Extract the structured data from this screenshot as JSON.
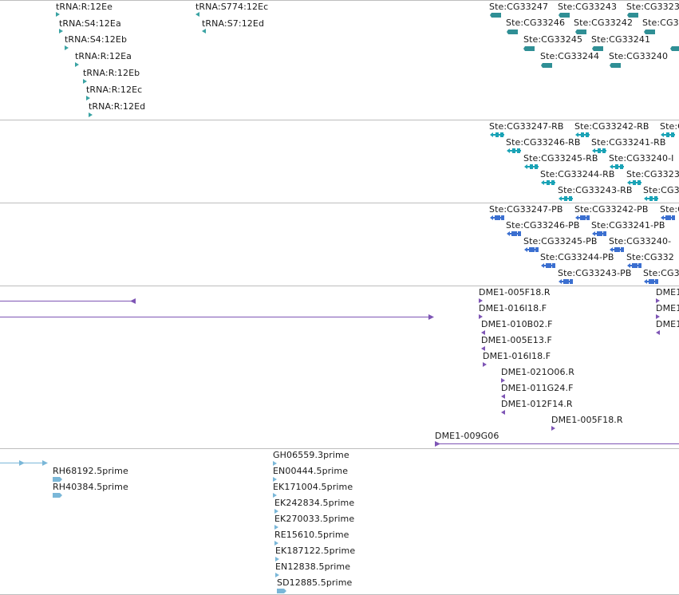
{
  "colors": {
    "trna": "#3aa3a3",
    "gene": "#2f8f95",
    "transcript": "#1aa3b6",
    "protein": "#3b6fd0",
    "clone": "#7e55b5",
    "est": "#7ab7d8",
    "separator": "#bdbdbd"
  },
  "icons": {
    "feature": "triangle-arrow-icon",
    "gene": "gene-block-icon",
    "transcript": "transcript-arrow-icon",
    "protein": "protein-arrow-icon"
  },
  "tracks": {
    "trna": {
      "items": [
        "tRNA:R:12Ee",
        "tRNA:S4:12Ea",
        "tRNA:S4:12Eb",
        "tRNA:R:12Ea",
        "tRNA:R:12Eb",
        "tRNA:R:12Ec",
        "tRNA:R:12Ed",
        "tRNA:S774:12Ec",
        "tRNA:S7:12Ed"
      ]
    },
    "genes": {
      "items": [
        "Ste:CG33247",
        "Ste:CG33243",
        "Ste:CG3323",
        "Ste:CG33246",
        "Ste:CG33242",
        "Ste:CG3",
        "Ste:CG33245",
        "Ste:CG33241",
        "Ste:CG33244",
        "Ste:CG33240"
      ]
    },
    "transcripts": {
      "items": [
        "Ste:CG33247-RB",
        "Ste:CG33242-RB",
        "Ste:C",
        "Ste:CG33246-RB",
        "Ste:CG33241-RB",
        "Ste:CG33245-RB",
        "Ste:CG33240-I",
        "Ste:CG33244-RB",
        "Ste:CG3323",
        "Ste:CG33243-RB",
        "Ste:CG3"
      ]
    },
    "proteins": {
      "items": [
        "Ste:CG33247-PB",
        "Ste:CG33242-PB",
        "Ste:C",
        "Ste:CG33246-PB",
        "Ste:CG33241-PB",
        "Ste:CG33245-PB",
        "Ste:CG33240-",
        "Ste:CG33244-PB",
        "Ste:CG332",
        "Ste:CG33243-PB",
        "Ste:CG3"
      ]
    },
    "clones": {
      "items": [
        "DME1-005F18.R",
        "DME1-016I18.F",
        "DME1-010B02.F",
        "DME1-005E13.F",
        "DME1-016I18.F",
        "DME1-021O06.R",
        "DME1-011G24.F",
        "DME1-012F14.R",
        "DME1-005F18.R",
        "DME1-009G06",
        "DME1",
        "DME1",
        "DME1"
      ]
    },
    "ests": {
      "items": [
        "RH68192.5prime",
        "RH40384.5prime",
        "GH06559.3prime",
        "EN00444.5prime",
        "EK171004.5prime",
        "EK242834.5prime",
        "EK270033.5prime",
        "RE15610.5prime",
        "EK187122.5prime",
        "EN12838.5prime",
        "SD12885.5prime"
      ]
    }
  }
}
